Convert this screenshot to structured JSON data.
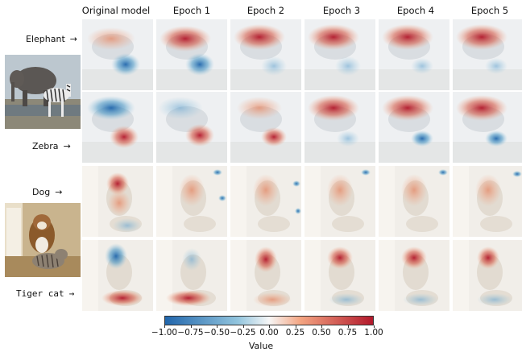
{
  "columns": [
    "Original model",
    "Epoch 1",
    "Epoch 2",
    "Epoch 3",
    "Epoch 4",
    "Epoch 5"
  ],
  "rows": [
    {
      "label": "Elephant",
      "arrow": "→",
      "monospace": false
    },
    {
      "label": "Zebra",
      "arrow": "→",
      "monospace": false
    },
    {
      "label": "Dog",
      "arrow": "→",
      "monospace": false
    },
    {
      "label": "Tiger cat",
      "arrow": "→",
      "monospace": true
    }
  ],
  "colorbar": {
    "ticks": [
      "−1.00",
      "−0.75",
      "−0.50",
      "−0.25",
      "0.00",
      "0.25",
      "0.50",
      "0.75",
      "1.00"
    ],
    "title": "Value",
    "low_color": "#2166ac",
    "mid_color": "#f7f7f7",
    "high_color": "#b2182b"
  }
}
